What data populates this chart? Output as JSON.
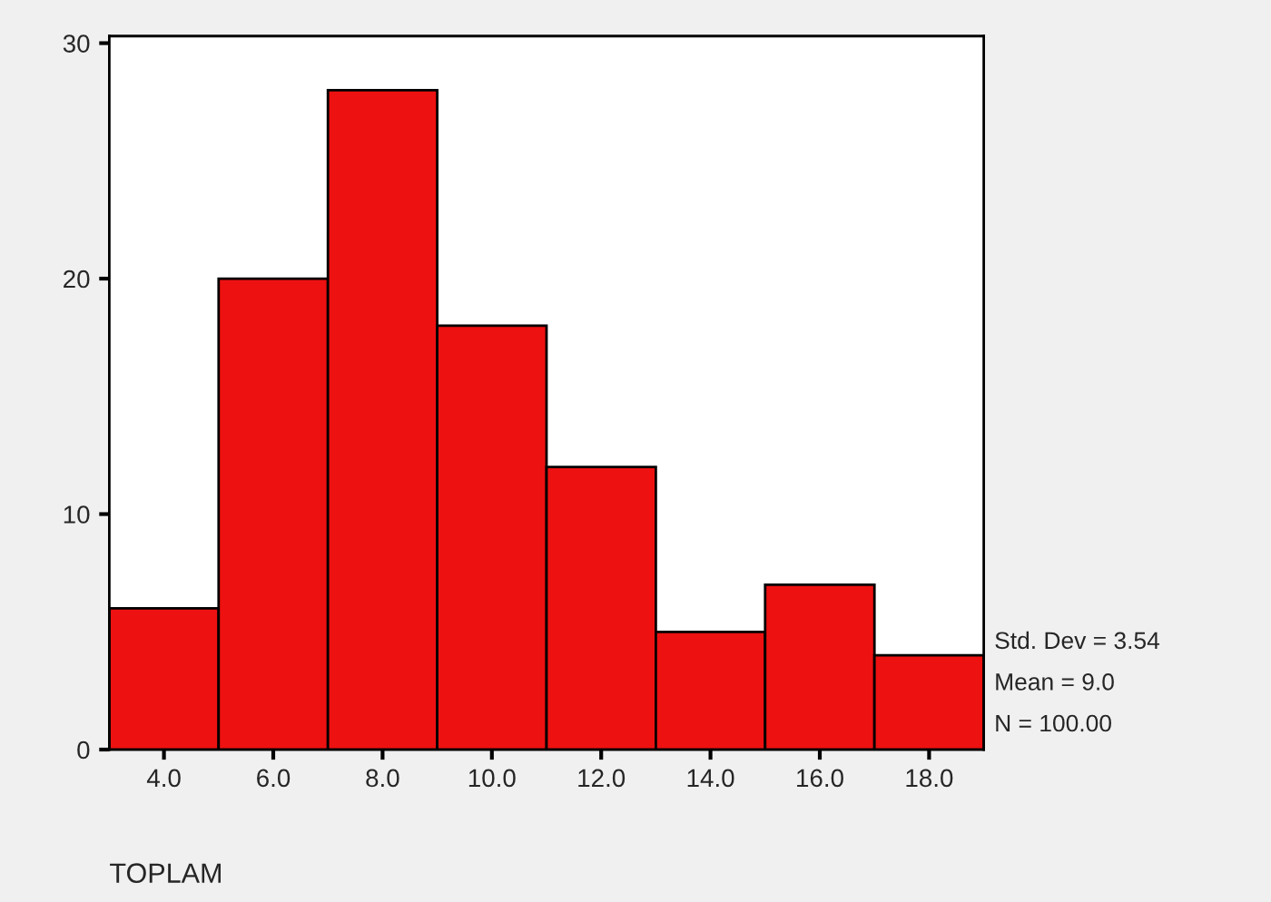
{
  "chart_data": {
    "type": "histogram",
    "xlabel": "TOPLAM",
    "bins": [
      3,
      5,
      7,
      9,
      11,
      13,
      15,
      17,
      19
    ],
    "values": [
      6,
      20,
      28,
      18,
      12,
      5,
      7,
      4
    ],
    "color": "#ee1111",
    "xlim": [
      3,
      19
    ],
    "xticks": [
      {
        "value": 4,
        "label": "4.0"
      },
      {
        "value": 6,
        "label": "6.0"
      },
      {
        "value": 8,
        "label": "8.0"
      },
      {
        "value": 10,
        "label": "10.0"
      },
      {
        "value": 12,
        "label": "12.0"
      },
      {
        "value": 14,
        "label": "14.0"
      },
      {
        "value": 16,
        "label": "16.0"
      },
      {
        "value": 18,
        "label": "18.0"
      }
    ],
    "ylim": [
      0,
      30.3
    ],
    "yticks": [
      0,
      10,
      20,
      30
    ],
    "grid": false,
    "legend": false,
    "annotations": [
      "Std. Dev = 3.54",
      "Mean = 9.0",
      "N = 100.00"
    ]
  }
}
